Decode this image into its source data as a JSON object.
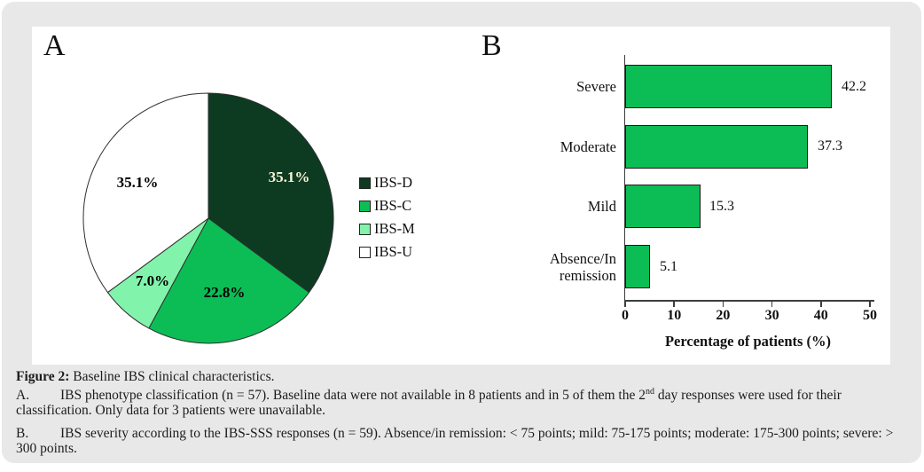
{
  "figure": {
    "panel_a_label": "A",
    "panel_b_label": "B"
  },
  "colors": {
    "card_bg": "#e8e8e8",
    "panel_bg": "#ffffff",
    "dark_green": "#0d3b21",
    "green": "#0cbd55",
    "light_green": "#82f3ab",
    "white": "#ffffff",
    "axis": "#3d3d3d",
    "cream_label": "#f8f3d6"
  },
  "chart_data": [
    {
      "type": "pie",
      "categories": [
        "IBS-D",
        "IBS-C",
        "IBS-M",
        "IBS-U"
      ],
      "values": [
        35.1,
        22.8,
        7.0,
        35.1
      ],
      "slice_labels": [
        "35.1%",
        "22.8%",
        "7.0%",
        "35.1%"
      ],
      "colors": [
        "#0d3b21",
        "#0cbd55",
        "#82f3ab",
        "#ffffff"
      ],
      "slice_label_colors": [
        "#f8f3d6",
        "#000000",
        "#000000",
        "#000000"
      ],
      "start_angle_deg": 0,
      "direction": "clockwise",
      "legend_position": "right",
      "legend_entries": [
        "IBS-D",
        "IBS-C",
        "IBS-M",
        "IBS-U"
      ]
    },
    {
      "type": "bar",
      "orientation": "horizontal",
      "categories": [
        "Severe",
        "Moderate",
        "Mild",
        "Absence/In remission"
      ],
      "values": [
        42.2,
        37.3,
        15.3,
        5.1
      ],
      "value_labels": [
        "42.2",
        "37.3",
        "15.3",
        "5.1"
      ],
      "bar_color": "#0cbd55",
      "xlabel": "Percentage of patients (%)",
      "xlim": [
        0,
        50
      ],
      "xticks": [
        0,
        10,
        20,
        30,
        40,
        50
      ],
      "grid": false,
      "legend_position": "none"
    }
  ],
  "caption": {
    "figure_label": "Figure 2:",
    "figure_text": " Baseline IBS clinical characteristics.",
    "a_label": "A.",
    "a_text_1": "IBS phenotype classification (n = 57). Baseline data were not available in 8 patients and in 5 of them the 2",
    "a_sup": "nd",
    "a_text_2": " day responses were used for their classification. Only data for 3 patients were unavailable.",
    "b_label": "B.",
    "b_text": "IBS severity according to the IBS-SSS responses (n = 59). Absence/in remission: < 75 points; mild: 75-175 points; moderate: 175-300 points; severe: > 300 points."
  }
}
